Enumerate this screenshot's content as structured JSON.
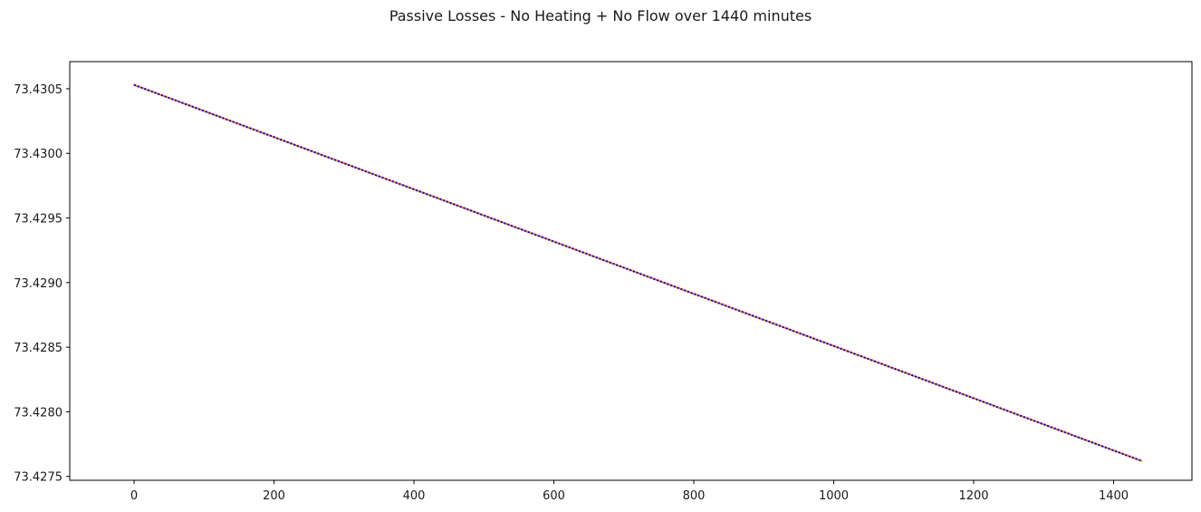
{
  "figure": {
    "suptitle": "Passive Losses - No Heating + No Flow over 1440 minutes"
  },
  "chart_data": {
    "type": "line",
    "title": "Passive Losses - No Heating + No Flow over 1440 minutes",
    "xlabel": "",
    "ylabel": "",
    "xlim": [
      -92,
      1512
    ],
    "ylim": [
      73.42747,
      73.43071
    ],
    "xticks": [
      0,
      200,
      400,
      600,
      800,
      1000,
      1200,
      1400
    ],
    "xtick_labels": [
      "0",
      "200",
      "400",
      "600",
      "800",
      "1000",
      "1200",
      "1400"
    ],
    "yticks": [
      73.4275,
      73.428,
      73.4285,
      73.429,
      73.4295,
      73.43,
      73.4305
    ],
    "ytick_labels": [
      "73.4275",
      "73.4280",
      "73.4285",
      "73.4290",
      "73.4295",
      "73.4300",
      "73.4305"
    ],
    "grid": false,
    "legend": "none",
    "series": [
      {
        "color": "#ff7f0e",
        "style": "solid",
        "x": [
          0,
          1440
        ],
        "y": [
          73.43053,
          73.42762
        ]
      },
      {
        "color": "#0000ff",
        "style": "dotted",
        "x": [
          0,
          1440
        ],
        "y": [
          73.43053,
          73.42762
        ]
      }
    ]
  }
}
